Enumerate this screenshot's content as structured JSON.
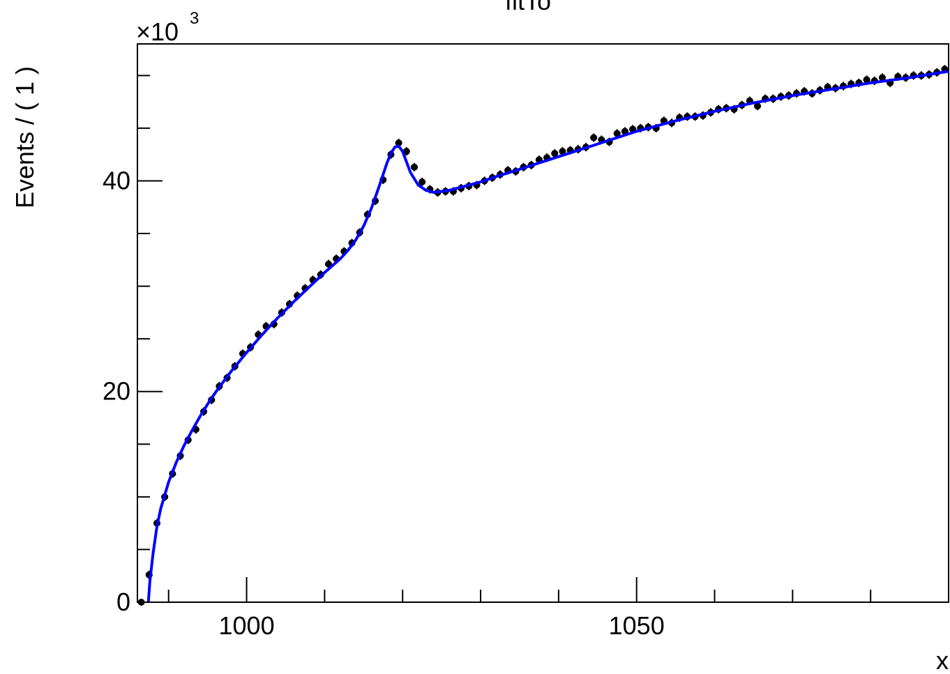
{
  "chart_data": {
    "type": "scatter",
    "title": "fitTo",
    "xlabel": "x",
    "ylabel": "Events / ( 1 )",
    "y_multiplier_label": "×10",
    "y_multiplier_exponent": "3",
    "xlim": [
      986,
      1090
    ],
    "ylim": [
      0,
      53
    ],
    "x_major_ticks": [
      1000,
      1050
    ],
    "x_tick_labels": [
      "1000",
      "1050"
    ],
    "y_major_ticks": [
      0,
      20,
      40
    ],
    "y_tick_labels": [
      "0",
      "20",
      "40"
    ],
    "grid": false,
    "legend": "none",
    "marker_color": "#000000",
    "fit_color": "#0000ff",
    "series": [
      {
        "values_x": [
          986.5,
          987.5,
          988.5,
          989.5,
          990.5,
          991.5,
          992.5,
          993.5,
          994.5,
          995.5,
          996.5,
          997.5,
          998.5,
          999.5,
          1000.5,
          1001.5,
          1002.5,
          1003.5,
          1004.5,
          1005.5,
          1006.5,
          1007.5,
          1008.5,
          1009.5,
          1010.5,
          1011.5,
          1012.5,
          1013.5,
          1014.5,
          1015.5,
          1016.5,
          1017.5,
          1018.5,
          1019.5,
          1020.5,
          1021.5,
          1022.5,
          1023.5,
          1024.5,
          1025.5,
          1026.5,
          1027.5,
          1028.5,
          1029.5,
          1030.5,
          1031.5,
          1032.5,
          1033.5,
          1034.5,
          1035.5,
          1036.5,
          1037.5,
          1038.5,
          1039.5,
          1040.5,
          1041.5,
          1042.5,
          1043.5,
          1044.5,
          1045.5,
          1046.5,
          1047.5,
          1048.5,
          1049.5,
          1050.5,
          1051.5,
          1052.5,
          1053.5,
          1054.5,
          1055.5,
          1056.5,
          1057.5,
          1058.5,
          1059.5,
          1060.5,
          1061.5,
          1062.5,
          1063.5,
          1064.5,
          1065.5,
          1066.5,
          1067.5,
          1068.5,
          1069.5,
          1070.5,
          1071.5,
          1072.5,
          1073.5,
          1074.5,
          1075.5,
          1076.5,
          1077.5,
          1078.5,
          1079.5,
          1080.5,
          1081.5,
          1082.5,
          1083.5,
          1084.5,
          1085.5,
          1086.5,
          1087.5,
          1088.5,
          1089.5
        ],
        "values_y": [
          0,
          2.6,
          7.5,
          10.0,
          12.2,
          13.9,
          15.4,
          16.4,
          18.1,
          19.2,
          20.5,
          21.3,
          22.4,
          23.6,
          24.2,
          25.4,
          26.2,
          26.4,
          27.5,
          28.3,
          29.1,
          29.8,
          30.6,
          31.1,
          32.1,
          32.6,
          33.3,
          34.1,
          35.1,
          36.8,
          38.1,
          40.1,
          42.5,
          43.6,
          42.8,
          41.3,
          39.9,
          39.2,
          38.9,
          39.0,
          39.0,
          39.3,
          39.5,
          39.6,
          40.0,
          40.3,
          40.6,
          41.0,
          40.9,
          41.3,
          41.5,
          42.0,
          42.2,
          42.6,
          42.8,
          42.9,
          43.0,
          43.2,
          44.1,
          43.9,
          43.7,
          44.5,
          44.7,
          44.9,
          45.0,
          45.1,
          45.0,
          45.7,
          45.5,
          46.0,
          46.1,
          46.1,
          46.2,
          46.5,
          46.8,
          46.9,
          46.8,
          47.2,
          47.6,
          47.1,
          47.8,
          47.8,
          48.0,
          48.1,
          48.3,
          48.5,
          48.3,
          48.6,
          48.9,
          48.8,
          49.0,
          49.2,
          49.3,
          49.6,
          49.5,
          49.8,
          49.3,
          49.9,
          49.8,
          50.0,
          50.0,
          50.1,
          50.3,
          50.6
        ],
        "errors_y": [
          0.3,
          0.4,
          0.4,
          0.4,
          0.4,
          0.4,
          0.4,
          0.4,
          0.4,
          0.4,
          0.4,
          0.4,
          0.4,
          0.4,
          0.4,
          0.4,
          0.4,
          0.4,
          0.4,
          0.4,
          0.4,
          0.4,
          0.4,
          0.4,
          0.4,
          0.4,
          0.4,
          0.4,
          0.4,
          0.4,
          0.4,
          0.4,
          0.4,
          0.4,
          0.4,
          0.4,
          0.4,
          0.4,
          0.4,
          0.4,
          0.4,
          0.4,
          0.4,
          0.4,
          0.4,
          0.4,
          0.4,
          0.4,
          0.4,
          0.4,
          0.4,
          0.4,
          0.4,
          0.4,
          0.4,
          0.4,
          0.4,
          0.4,
          0.4,
          0.4,
          0.4,
          0.4,
          0.4,
          0.4,
          0.4,
          0.4,
          0.4,
          0.4,
          0.4,
          0.4,
          0.4,
          0.4,
          0.4,
          0.4,
          0.4,
          0.4,
          0.4,
          0.4,
          0.4,
          0.4,
          0.4,
          0.4,
          0.4,
          0.4,
          0.4,
          0.4,
          0.4,
          0.4,
          0.4,
          0.4,
          0.4,
          0.4,
          0.4,
          0.4,
          0.4,
          0.4,
          0.4,
          0.4,
          0.4,
          0.4,
          0.4,
          0.4,
          0.4,
          0.4
        ]
      },
      {
        "type": "line",
        "x": [
          987.4,
          987.6,
          988.0,
          988.5,
          989,
          990,
          991,
          992,
          993,
          994,
          995,
          996,
          997,
          998,
          999,
          1000,
          1002,
          1004,
          1006,
          1008,
          1010,
          1012,
          1013,
          1014,
          1015,
          1016,
          1017,
          1018,
          1018.5,
          1019,
          1019.5,
          1020,
          1020.5,
          1021,
          1022,
          1023,
          1024,
          1025,
          1026,
          1027,
          1028,
          1030,
          1032,
          1035,
          1040,
          1045,
          1050,
          1055,
          1060,
          1065,
          1070,
          1075,
          1080,
          1085,
          1090
        ],
        "y": [
          0,
          2.0,
          4.6,
          7.2,
          8.9,
          11.4,
          13.3,
          14.9,
          16.3,
          17.6,
          18.8,
          19.9,
          20.9,
          21.9,
          22.8,
          23.7,
          25.4,
          27.0,
          28.5,
          29.9,
          31.3,
          32.6,
          33.4,
          34.4,
          35.7,
          37.4,
          39.5,
          41.7,
          42.6,
          43.2,
          43.3,
          42.8,
          41.8,
          40.8,
          39.6,
          39.1,
          38.9,
          39.0,
          39.1,
          39.3,
          39.5,
          39.9,
          40.4,
          41.1,
          42.3,
          43.5,
          44.7,
          45.7,
          46.6,
          47.4,
          48.1,
          48.7,
          49.3,
          49.8,
          50.4
        ]
      }
    ]
  }
}
